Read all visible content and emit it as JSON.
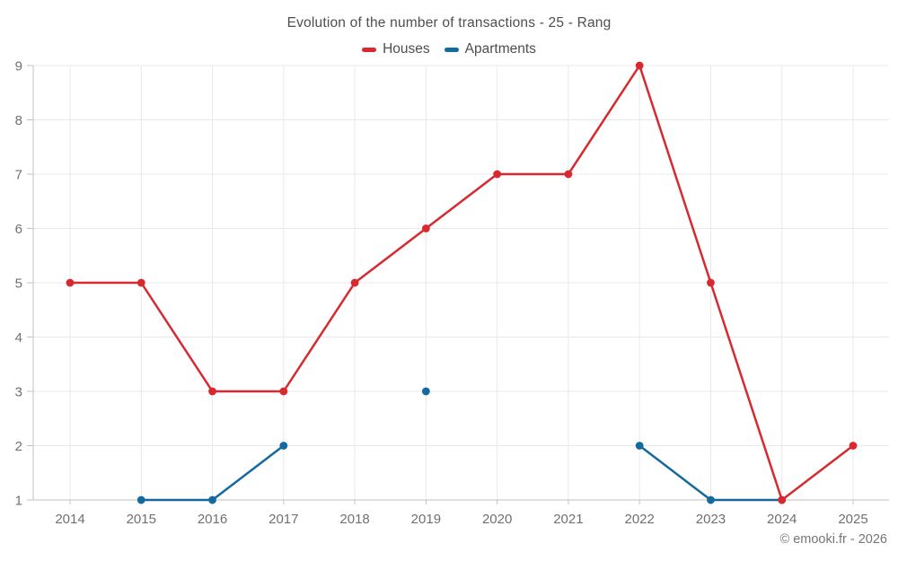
{
  "chart_data": {
    "type": "line",
    "title": "Evolution of the number of transactions - 25 - Rang",
    "categories": [
      "2014",
      "2015",
      "2016",
      "2017",
      "2018",
      "2019",
      "2020",
      "2021",
      "2022",
      "2023",
      "2024",
      "2025"
    ],
    "series": [
      {
        "name": "Houses",
        "color": "#d7292f",
        "values": [
          5,
          5,
          3,
          3,
          5,
          6,
          7,
          7,
          9,
          5,
          1,
          2
        ]
      },
      {
        "name": "Apartments",
        "color": "#14699e",
        "values": [
          null,
          1,
          1,
          2,
          null,
          3,
          null,
          null,
          2,
          1,
          1,
          null
        ]
      }
    ],
    "xlabel": "",
    "ylabel": "",
    "ylim": [
      1,
      9
    ],
    "yticks": [
      1,
      2,
      3,
      4,
      5,
      6,
      7,
      8,
      9
    ],
    "grid": true,
    "legend_position": "top"
  },
  "footer": {
    "copyright": "© emooki.fr - 2026"
  },
  "colors": {
    "grid": "#e8e8e8",
    "axis": "#c2c2c2",
    "tick_label": "#707070",
    "title_text": "#4e4e4e",
    "background": "#ffffff"
  }
}
